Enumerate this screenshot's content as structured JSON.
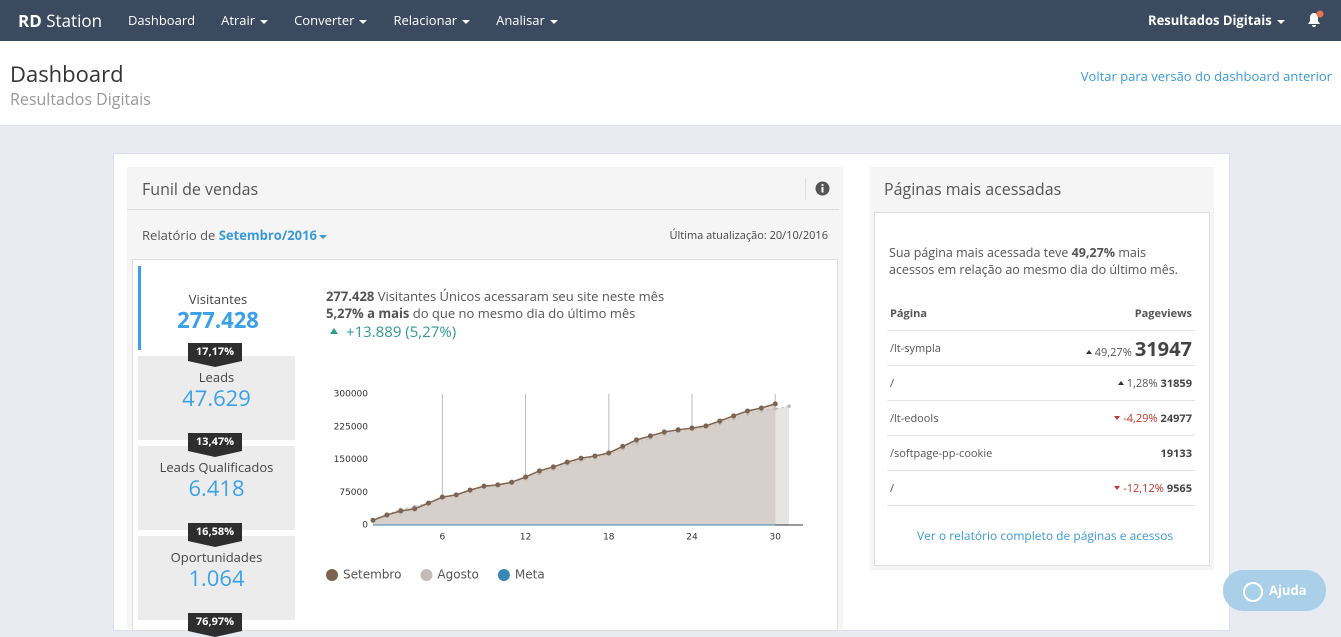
{
  "nav": {
    "brand_bold": "RD",
    "brand": "Station",
    "items": [
      "Dashboard",
      "Atrair",
      "Converter",
      "Relacionar",
      "Analisar"
    ],
    "account": "Resultados Digitais"
  },
  "header": {
    "title": "Dashboard",
    "subtitle": "Resultados Digitais",
    "link": "Voltar para versão do dashboard anterior"
  },
  "funnel": {
    "title": "Funil de vendas",
    "report_prefix": "Relatório de",
    "period": "Setembro/2016",
    "updated": "Última atualização: 20/10/2016",
    "stages": [
      {
        "label": "Visitantes",
        "value": "277.428"
      },
      {
        "label": "Leads",
        "value": "47.629"
      },
      {
        "label": "Leads Qualificados",
        "value": "6.418"
      },
      {
        "label": "Oportunidades",
        "value": "1.064"
      }
    ],
    "rates": [
      "17,17%",
      "13,47%",
      "16,58%",
      "76,97%"
    ],
    "summary": {
      "line1_bold": "277.428",
      "line1": "Visitantes Únicos acessaram seu site neste mês",
      "line2_bold": "5,27% a mais",
      "line2": "do que no mesmo dia do último mês",
      "delta": "+13.889 (5,27%)"
    }
  },
  "chart_data": {
    "type": "line",
    "x": [
      1,
      2,
      3,
      4,
      5,
      6,
      7,
      8,
      9,
      10,
      11,
      12,
      13,
      14,
      15,
      16,
      17,
      18,
      19,
      20,
      21,
      22,
      23,
      24,
      25,
      26,
      27,
      28,
      29,
      30,
      31
    ],
    "series": [
      {
        "name": "Setembro",
        "color": "#7d6450",
        "values": [
          11000,
          23000,
          32000,
          37000,
          50000,
          64000,
          69000,
          80000,
          89000,
          92000,
          98000,
          110000,
          124000,
          133000,
          144000,
          153000,
          158000,
          165000,
          180000,
          195000,
          204000,
          213000,
          218000,
          222000,
          227000,
          238000,
          250000,
          261000,
          268000,
          277428,
          null
        ]
      },
      {
        "name": "Agosto",
        "color": "#c2bbb6",
        "values": [
          12000,
          24000,
          36000,
          42000,
          52000,
          62000,
          68000,
          78000,
          86000,
          91000,
          96000,
          106000,
          118000,
          128000,
          139000,
          148000,
          155000,
          162000,
          174000,
          188000,
          198000,
          208000,
          214000,
          219000,
          224000,
          232000,
          243000,
          254000,
          262000,
          266000,
          272000
        ]
      },
      {
        "name": "Meta",
        "color": "#3a87b5",
        "values": [
          0,
          0,
          0,
          0,
          0,
          0,
          0,
          0,
          0,
          0,
          0,
          0,
          0,
          0,
          0,
          0,
          0,
          0,
          0,
          0,
          0,
          0,
          0,
          0,
          0,
          0,
          0,
          0,
          0,
          0,
          null
        ]
      }
    ],
    "xlim": [
      1,
      32
    ],
    "ylim": [
      0,
      300000
    ],
    "xticks": [
      6,
      12,
      18,
      24,
      30
    ],
    "yticks": [
      0,
      75000,
      150000,
      225000,
      300000
    ]
  },
  "pages": {
    "title": "Páginas mais acessadas",
    "intro_start": "Sua página mais acessada teve",
    "intro_bold": "49,27%",
    "intro_end": "mais acessos em relação ao mesmo dia do último mês.",
    "columns": [
      "Página",
      "Pageviews"
    ],
    "rows": [
      [
        "/lt-sympla",
        "49,27%",
        31947
      ],
      [
        "/",
        "1,28%",
        31859
      ],
      [
        "/lt-edools",
        "-4,29%",
        24977
      ],
      [
        "/softpage-pp-cookie",
        null,
        19133
      ],
      [
        "/",
        "-12,12%",
        9565
      ]
    ],
    "link": "Ver o relatório completo de páginas e acessos"
  },
  "help": "Ajuda"
}
